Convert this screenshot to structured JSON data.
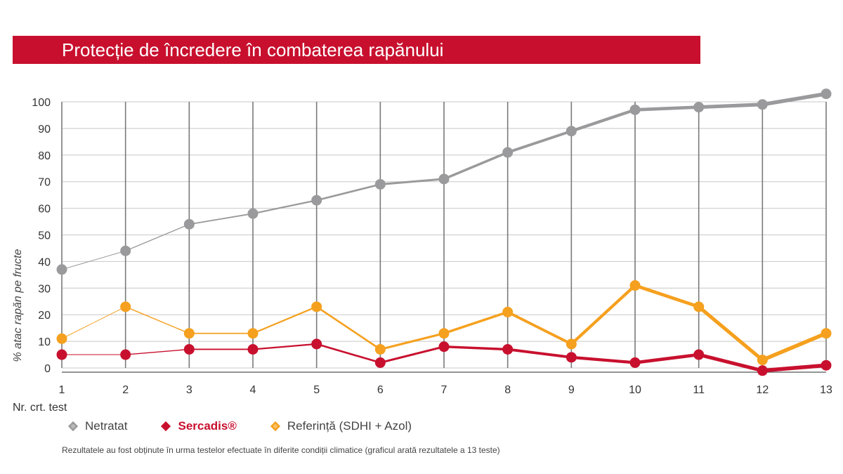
{
  "title": "Protecție de încredere în combaterea rapănului",
  "x_caption": "Nr. crt. test",
  "footnote": "Rezultatele au fost obținute în urma testelor efectuate în diferite condiții climatice (graficul arată rezultatele a 13 teste)",
  "legend": {
    "netratat": "Netratat",
    "sercadis": "Sercadis®",
    "referinta": "Referință (SDHI + Azol)"
  },
  "colors": {
    "brand": "#c8102e",
    "netratat": "#9a9a9c",
    "sercadis": "#c8102e",
    "referinta": "#f5a01e",
    "grid": "#c8c8c8",
    "vgrid": "#7a7a7a"
  },
  "chart_data": {
    "type": "line",
    "ylabel": "% atac rapăn pe fructe",
    "xlabel": "Nr. crt. test",
    "ylim": [
      0,
      100
    ],
    "yticks": [
      0,
      10,
      20,
      30,
      40,
      50,
      60,
      70,
      80,
      90,
      100
    ],
    "x": [
      1,
      2,
      3,
      4,
      5,
      6,
      7,
      8,
      9,
      10,
      11,
      12,
      13
    ],
    "grid": true,
    "series": [
      {
        "name": "Netratat",
        "color": "#9a9a9c",
        "values": [
          37,
          44,
          54,
          58,
          63,
          69,
          71,
          81,
          89,
          97,
          98,
          99,
          103
        ]
      },
      {
        "name": "Referință (SDHI + Azol)",
        "color": "#f5a01e",
        "values": [
          11,
          23,
          13,
          13,
          23,
          7,
          13,
          21,
          9,
          31,
          23,
          3,
          13
        ]
      },
      {
        "name": "Sercadis®",
        "color": "#c8102e",
        "values": [
          5,
          5,
          7,
          7,
          9,
          2,
          8,
          7,
          4,
          2,
          5,
          -1,
          1
        ]
      }
    ]
  }
}
